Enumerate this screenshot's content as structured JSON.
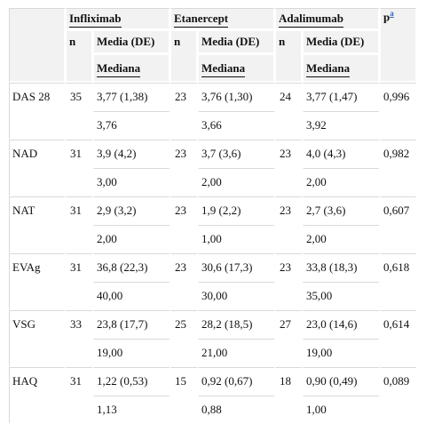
{
  "header": {
    "groups": [
      "Infliximab",
      "Etanercept",
      "Adalimumab"
    ],
    "p_label": "p",
    "p_sup": "a",
    "n_label": "n",
    "mean_label": "Media (DE)",
    "median_label": "Mediana"
  },
  "rows": [
    {
      "label": "DAS 28",
      "n1": "35",
      "m1": "3,77 (1,38)",
      "d1": "3,76",
      "n2": "23",
      "m2": "3,76 (1,30)",
      "d2": "3,66",
      "n3": "24",
      "m3": "3,77 (1,47)",
      "d3": "3,92",
      "p": "0,996"
    },
    {
      "label": "NAD",
      "n1": "31",
      "m1": "3,9 (4,2)",
      "d1": "3,00",
      "n2": "23",
      "m2": "3,7 (3,6)",
      "d2": "2,00",
      "n3": "23",
      "m3": "4,0 (4,3)",
      "d3": "2,00",
      "p": "0,982"
    },
    {
      "label": "NAT",
      "n1": "31",
      "m1": "2,9 (3,2)",
      "d1": "2,00",
      "n2": "23",
      "m2": "1,9 (2,2)",
      "d2": "1,00",
      "n3": "23",
      "m3": "2,7 (3,6)",
      "d3": "2,00",
      "p": "0,607"
    },
    {
      "label": "EVAg",
      "n1": "31",
      "m1": "36,8 (22,3)",
      "d1": "40,00",
      "n2": "23",
      "m2": "30,6 (17,3)",
      "d2": "30,00",
      "n3": "23",
      "m3": "33,8 (18,3)",
      "d3": "35,00",
      "p": "0,618"
    },
    {
      "label": "VSG",
      "n1": "33",
      "m1": "23,8 (17,7)",
      "d1": "19,00",
      "n2": "25",
      "m2": "28,2 (18,5)",
      "d2": "21,00",
      "n3": "27",
      "m3": "23,0 (14,6)",
      "d3": "19,00",
      "p": "0,614"
    },
    {
      "label": "HAQ",
      "n1": "31",
      "m1": "1,22 (0,53)",
      "d1": "1,13",
      "n2": "15",
      "m2": "0,92 (0,67)",
      "d2": "0,88",
      "n3": "18",
      "m3": "0,90 (0,49)",
      "d3": "1,00",
      "p": "0,089"
    }
  ]
}
